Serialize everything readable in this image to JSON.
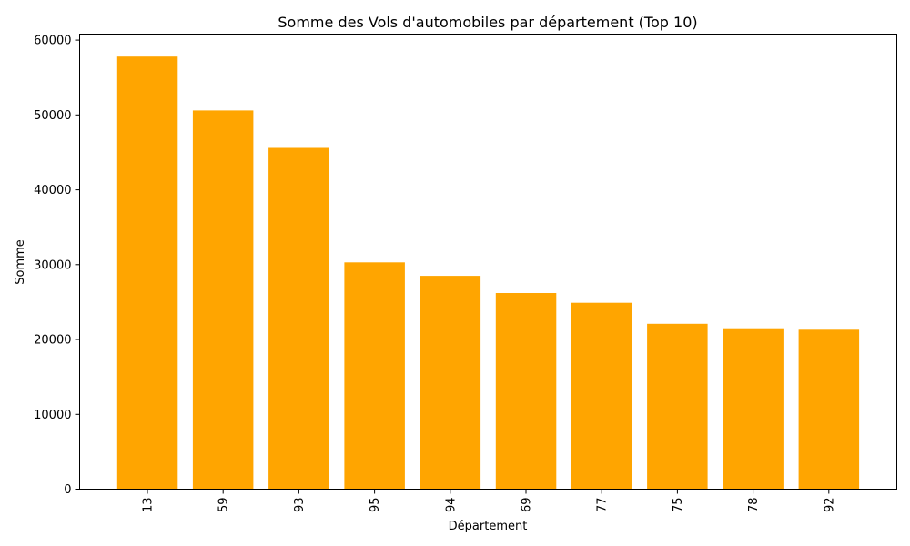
{
  "chart_data": {
    "type": "bar",
    "title": "Somme des Vols d'automobiles par département (Top 10)",
    "xlabel": "Département",
    "ylabel": "Somme",
    "categories": [
      "13",
      "59",
      "93",
      "95",
      "94",
      "69",
      "77",
      "75",
      "78",
      "92"
    ],
    "values": [
      57800,
      50600,
      45600,
      30300,
      28500,
      26200,
      24900,
      22100,
      21500,
      21300
    ],
    "ylim": [
      0,
      60800
    ],
    "yticks": [
      0,
      10000,
      20000,
      30000,
      40000,
      50000,
      60000
    ],
    "bar_color": "#ffa500",
    "grid": false,
    "xtick_rotation": "vertical"
  }
}
